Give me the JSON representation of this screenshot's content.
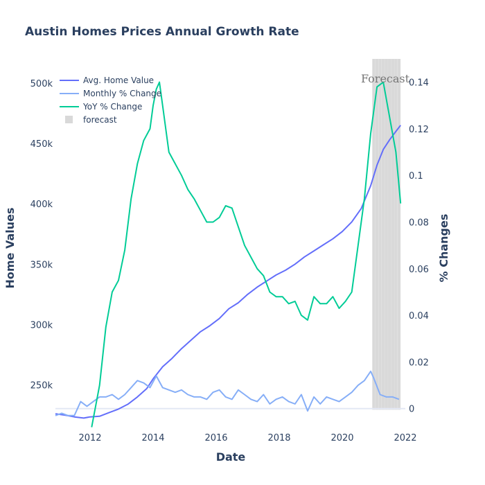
{
  "chart_data": {
    "type": "line",
    "title": "Austin Homes Prices Annual Growth Rate",
    "xlabel": "Date",
    "ylabel": "Home Values",
    "y2label": "% Changes",
    "xlim": [
      2010.9,
      2022.0
    ],
    "ylim": [
      213000,
      520000
    ],
    "y2lim": [
      -0.009,
      0.15
    ],
    "x_ticks": [
      2012,
      2014,
      2016,
      2018,
      2020,
      2022
    ],
    "y_ticks": [
      250000,
      300000,
      350000,
      400000,
      450000,
      500000
    ],
    "y_tick_labels": [
      "250k",
      "300k",
      "350k",
      "400k",
      "450k",
      "500k"
    ],
    "y2_ticks": [
      0,
      0.02,
      0.04,
      0.06,
      0.08,
      0.1,
      0.12,
      0.14
    ],
    "y2_tick_labels": [
      "0",
      "0.02",
      "0.04",
      "0.06",
      "0.08",
      "0.1",
      "0.12",
      "0.14"
    ],
    "annotation": "Forecast",
    "legend_position": "top-left",
    "forecast_range": [
      2021.0,
      2021.8
    ],
    "series": [
      {
        "name": "Avg. Home Value",
        "axis": "left",
        "color": "#636efa",
        "points": [
          [
            2010.9,
            226000
          ],
          [
            2011.2,
            225000
          ],
          [
            2011.5,
            223500
          ],
          [
            2011.8,
            222500
          ],
          [
            2012.0,
            223500
          ],
          [
            2012.3,
            224000
          ],
          [
            2012.6,
            227000
          ],
          [
            2012.9,
            230000
          ],
          [
            2013.2,
            234000
          ],
          [
            2013.5,
            240000
          ],
          [
            2013.8,
            247000
          ],
          [
            2014.0,
            255000
          ],
          [
            2014.3,
            265000
          ],
          [
            2014.6,
            272000
          ],
          [
            2014.9,
            280000
          ],
          [
            2015.2,
            287000
          ],
          [
            2015.5,
            294000
          ],
          [
            2015.8,
            299000
          ],
          [
            2016.1,
            305000
          ],
          [
            2016.4,
            313000
          ],
          [
            2016.7,
            318000
          ],
          [
            2017.0,
            325000
          ],
          [
            2017.3,
            331000
          ],
          [
            2017.6,
            336000
          ],
          [
            2017.9,
            341000
          ],
          [
            2018.2,
            345000
          ],
          [
            2018.5,
            350000
          ],
          [
            2018.8,
            356000
          ],
          [
            2019.1,
            361000
          ],
          [
            2019.4,
            366000
          ],
          [
            2019.7,
            371000
          ],
          [
            2020.0,
            377000
          ],
          [
            2020.3,
            385000
          ],
          [
            2020.6,
            396000
          ],
          [
            2020.9,
            415000
          ],
          [
            2021.1,
            432000
          ],
          [
            2021.3,
            445000
          ],
          [
            2021.5,
            453000
          ],
          [
            2021.7,
            460000
          ],
          [
            2021.85,
            465000
          ]
        ]
      },
      {
        "name": "Monthly % Change",
        "axis": "right",
        "color": "#86aef7",
        "points": [
          [
            2010.9,
            -0.003
          ],
          [
            2011.1,
            -0.002
          ],
          [
            2011.3,
            -0.003
          ],
          [
            2011.5,
            -0.003
          ],
          [
            2011.7,
            0.003
          ],
          [
            2011.9,
            0.001
          ],
          [
            2012.1,
            0.003
          ],
          [
            2012.3,
            0.005
          ],
          [
            2012.5,
            0.005
          ],
          [
            2012.7,
            0.006
          ],
          [
            2012.9,
            0.004
          ],
          [
            2013.1,
            0.006
          ],
          [
            2013.3,
            0.009
          ],
          [
            2013.5,
            0.012
          ],
          [
            2013.7,
            0.011
          ],
          [
            2013.9,
            0.009
          ],
          [
            2014.1,
            0.014
          ],
          [
            2014.3,
            0.009
          ],
          [
            2014.5,
            0.008
          ],
          [
            2014.7,
            0.007
          ],
          [
            2014.9,
            0.008
          ],
          [
            2015.1,
            0.006
          ],
          [
            2015.3,
            0.005
          ],
          [
            2015.5,
            0.005
          ],
          [
            2015.7,
            0.004
          ],
          [
            2015.9,
            0.007
          ],
          [
            2016.1,
            0.008
          ],
          [
            2016.3,
            0.005
          ],
          [
            2016.5,
            0.004
          ],
          [
            2016.7,
            0.008
          ],
          [
            2016.9,
            0.006
          ],
          [
            2017.1,
            0.004
          ],
          [
            2017.3,
            0.003
          ],
          [
            2017.5,
            0.006
          ],
          [
            2017.7,
            0.002
          ],
          [
            2017.9,
            0.004
          ],
          [
            2018.1,
            0.005
          ],
          [
            2018.3,
            0.003
          ],
          [
            2018.5,
            0.002
          ],
          [
            2018.7,
            0.006
          ],
          [
            2018.9,
            -0.001
          ],
          [
            2019.1,
            0.005
          ],
          [
            2019.3,
            0.002
          ],
          [
            2019.5,
            0.005
          ],
          [
            2019.7,
            0.004
          ],
          [
            2019.9,
            0.003
          ],
          [
            2020.1,
            0.005
          ],
          [
            2020.3,
            0.007
          ],
          [
            2020.5,
            0.01
          ],
          [
            2020.7,
            0.012
          ],
          [
            2020.9,
            0.016
          ],
          [
            2021.0,
            0.013
          ],
          [
            2021.2,
            0.006
          ],
          [
            2021.4,
            0.005
          ],
          [
            2021.6,
            0.005
          ],
          [
            2021.8,
            0.004
          ]
        ]
      },
      {
        "name": "YoY % Change",
        "axis": "right",
        "color": "#00cc96",
        "points": [
          [
            2012.05,
            -0.008
          ],
          [
            2012.3,
            0.01
          ],
          [
            2012.5,
            0.035
          ],
          [
            2012.7,
            0.05
          ],
          [
            2012.9,
            0.055
          ],
          [
            2013.1,
            0.068
          ],
          [
            2013.3,
            0.09
          ],
          [
            2013.5,
            0.105
          ],
          [
            2013.7,
            0.115
          ],
          [
            2013.9,
            0.12
          ],
          [
            2014.0,
            0.13
          ],
          [
            2014.1,
            0.137
          ],
          [
            2014.2,
            0.14
          ],
          [
            2014.3,
            0.13
          ],
          [
            2014.5,
            0.11
          ],
          [
            2014.7,
            0.105
          ],
          [
            2014.9,
            0.1
          ],
          [
            2015.1,
            0.094
          ],
          [
            2015.3,
            0.09
          ],
          [
            2015.5,
            0.085
          ],
          [
            2015.7,
            0.08
          ],
          [
            2015.9,
            0.08
          ],
          [
            2016.1,
            0.082
          ],
          [
            2016.3,
            0.087
          ],
          [
            2016.5,
            0.086
          ],
          [
            2016.7,
            0.078
          ],
          [
            2016.9,
            0.07
          ],
          [
            2017.1,
            0.065
          ],
          [
            2017.3,
            0.06
          ],
          [
            2017.5,
            0.057
          ],
          [
            2017.7,
            0.05
          ],
          [
            2017.9,
            0.048
          ],
          [
            2018.1,
            0.048
          ],
          [
            2018.3,
            0.045
          ],
          [
            2018.5,
            0.046
          ],
          [
            2018.7,
            0.04
          ],
          [
            2018.9,
            0.038
          ],
          [
            2019.1,
            0.048
          ],
          [
            2019.3,
            0.045
          ],
          [
            2019.5,
            0.045
          ],
          [
            2019.7,
            0.048
          ],
          [
            2019.9,
            0.043
          ],
          [
            2020.1,
            0.046
          ],
          [
            2020.3,
            0.05
          ],
          [
            2020.5,
            0.07
          ],
          [
            2020.7,
            0.09
          ],
          [
            2020.9,
            0.118
          ],
          [
            2021.1,
            0.138
          ],
          [
            2021.3,
            0.14
          ],
          [
            2021.5,
            0.125
          ],
          [
            2021.7,
            0.11
          ],
          [
            2021.85,
            0.088
          ]
        ]
      },
      {
        "name": "forecast",
        "axis": "right",
        "color": "#d9d9d9",
        "points": []
      }
    ]
  }
}
